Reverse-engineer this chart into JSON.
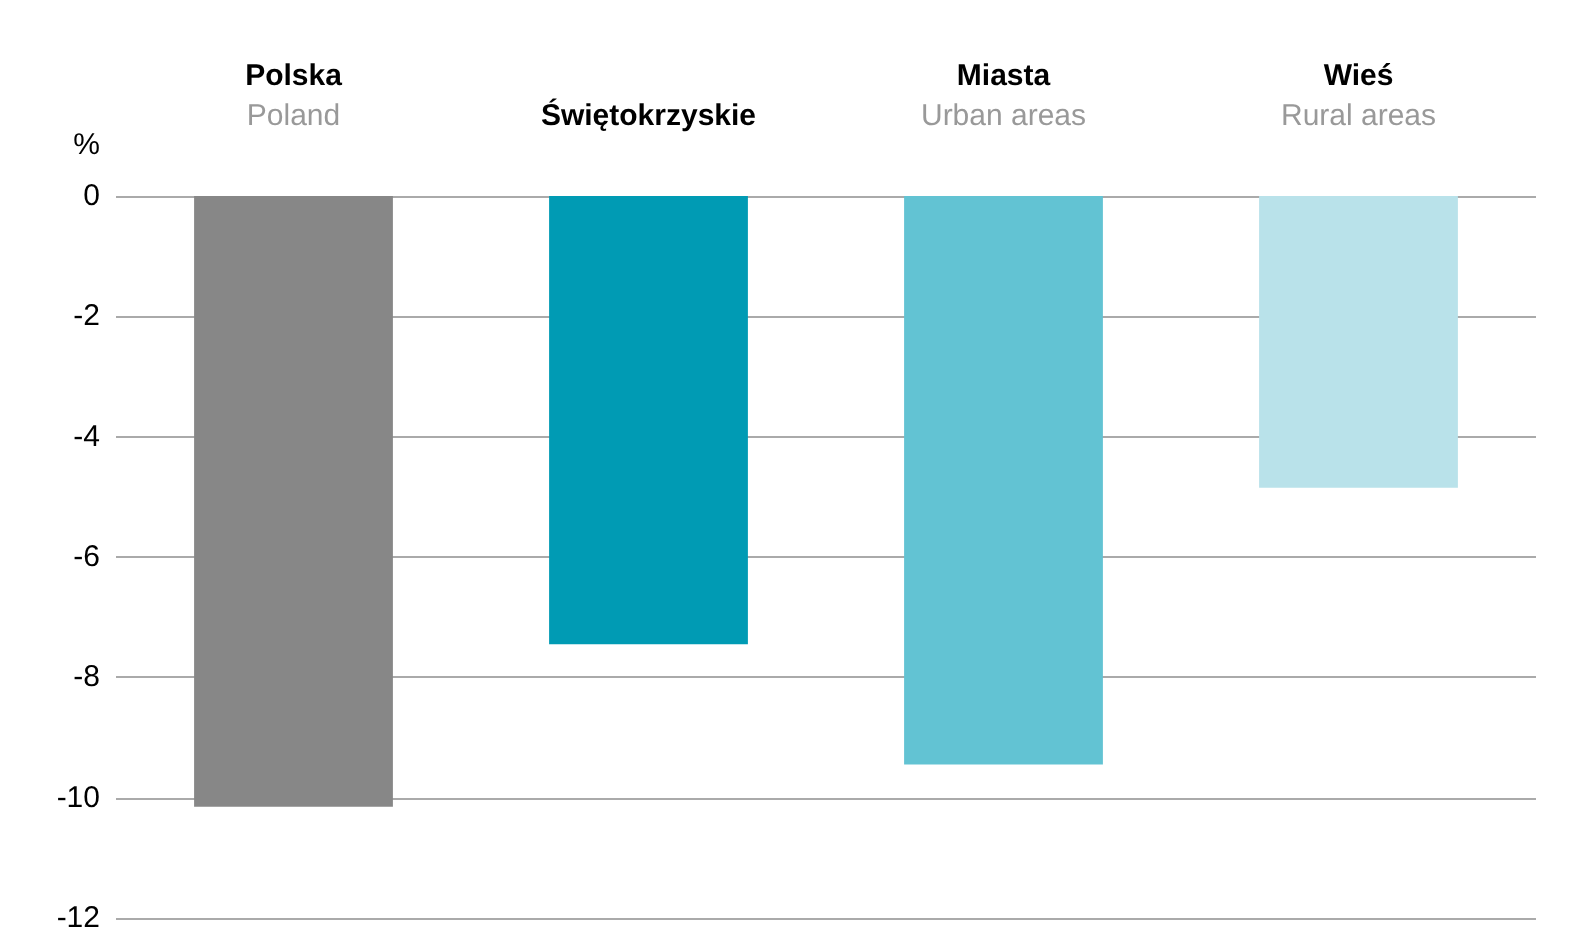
{
  "chart_data": {
    "type": "bar",
    "ylabel": "%",
    "categories": [
      "Polska\nPoland",
      "Świętokrzyskie",
      "Miasta\nUrban areas",
      "Wieś\nRural areas"
    ],
    "values": [
      -10.15,
      -7.45,
      -9.45,
      -4.85
    ],
    "colors": [
      "#878787",
      "#009bb4",
      "#62c3d3",
      "#b9e2ea"
    ],
    "ylim": [
      -12,
      0
    ],
    "yticks": [
      0,
      -2,
      -4,
      -6,
      -8,
      -10,
      -12
    ],
    "grid": "y"
  }
}
